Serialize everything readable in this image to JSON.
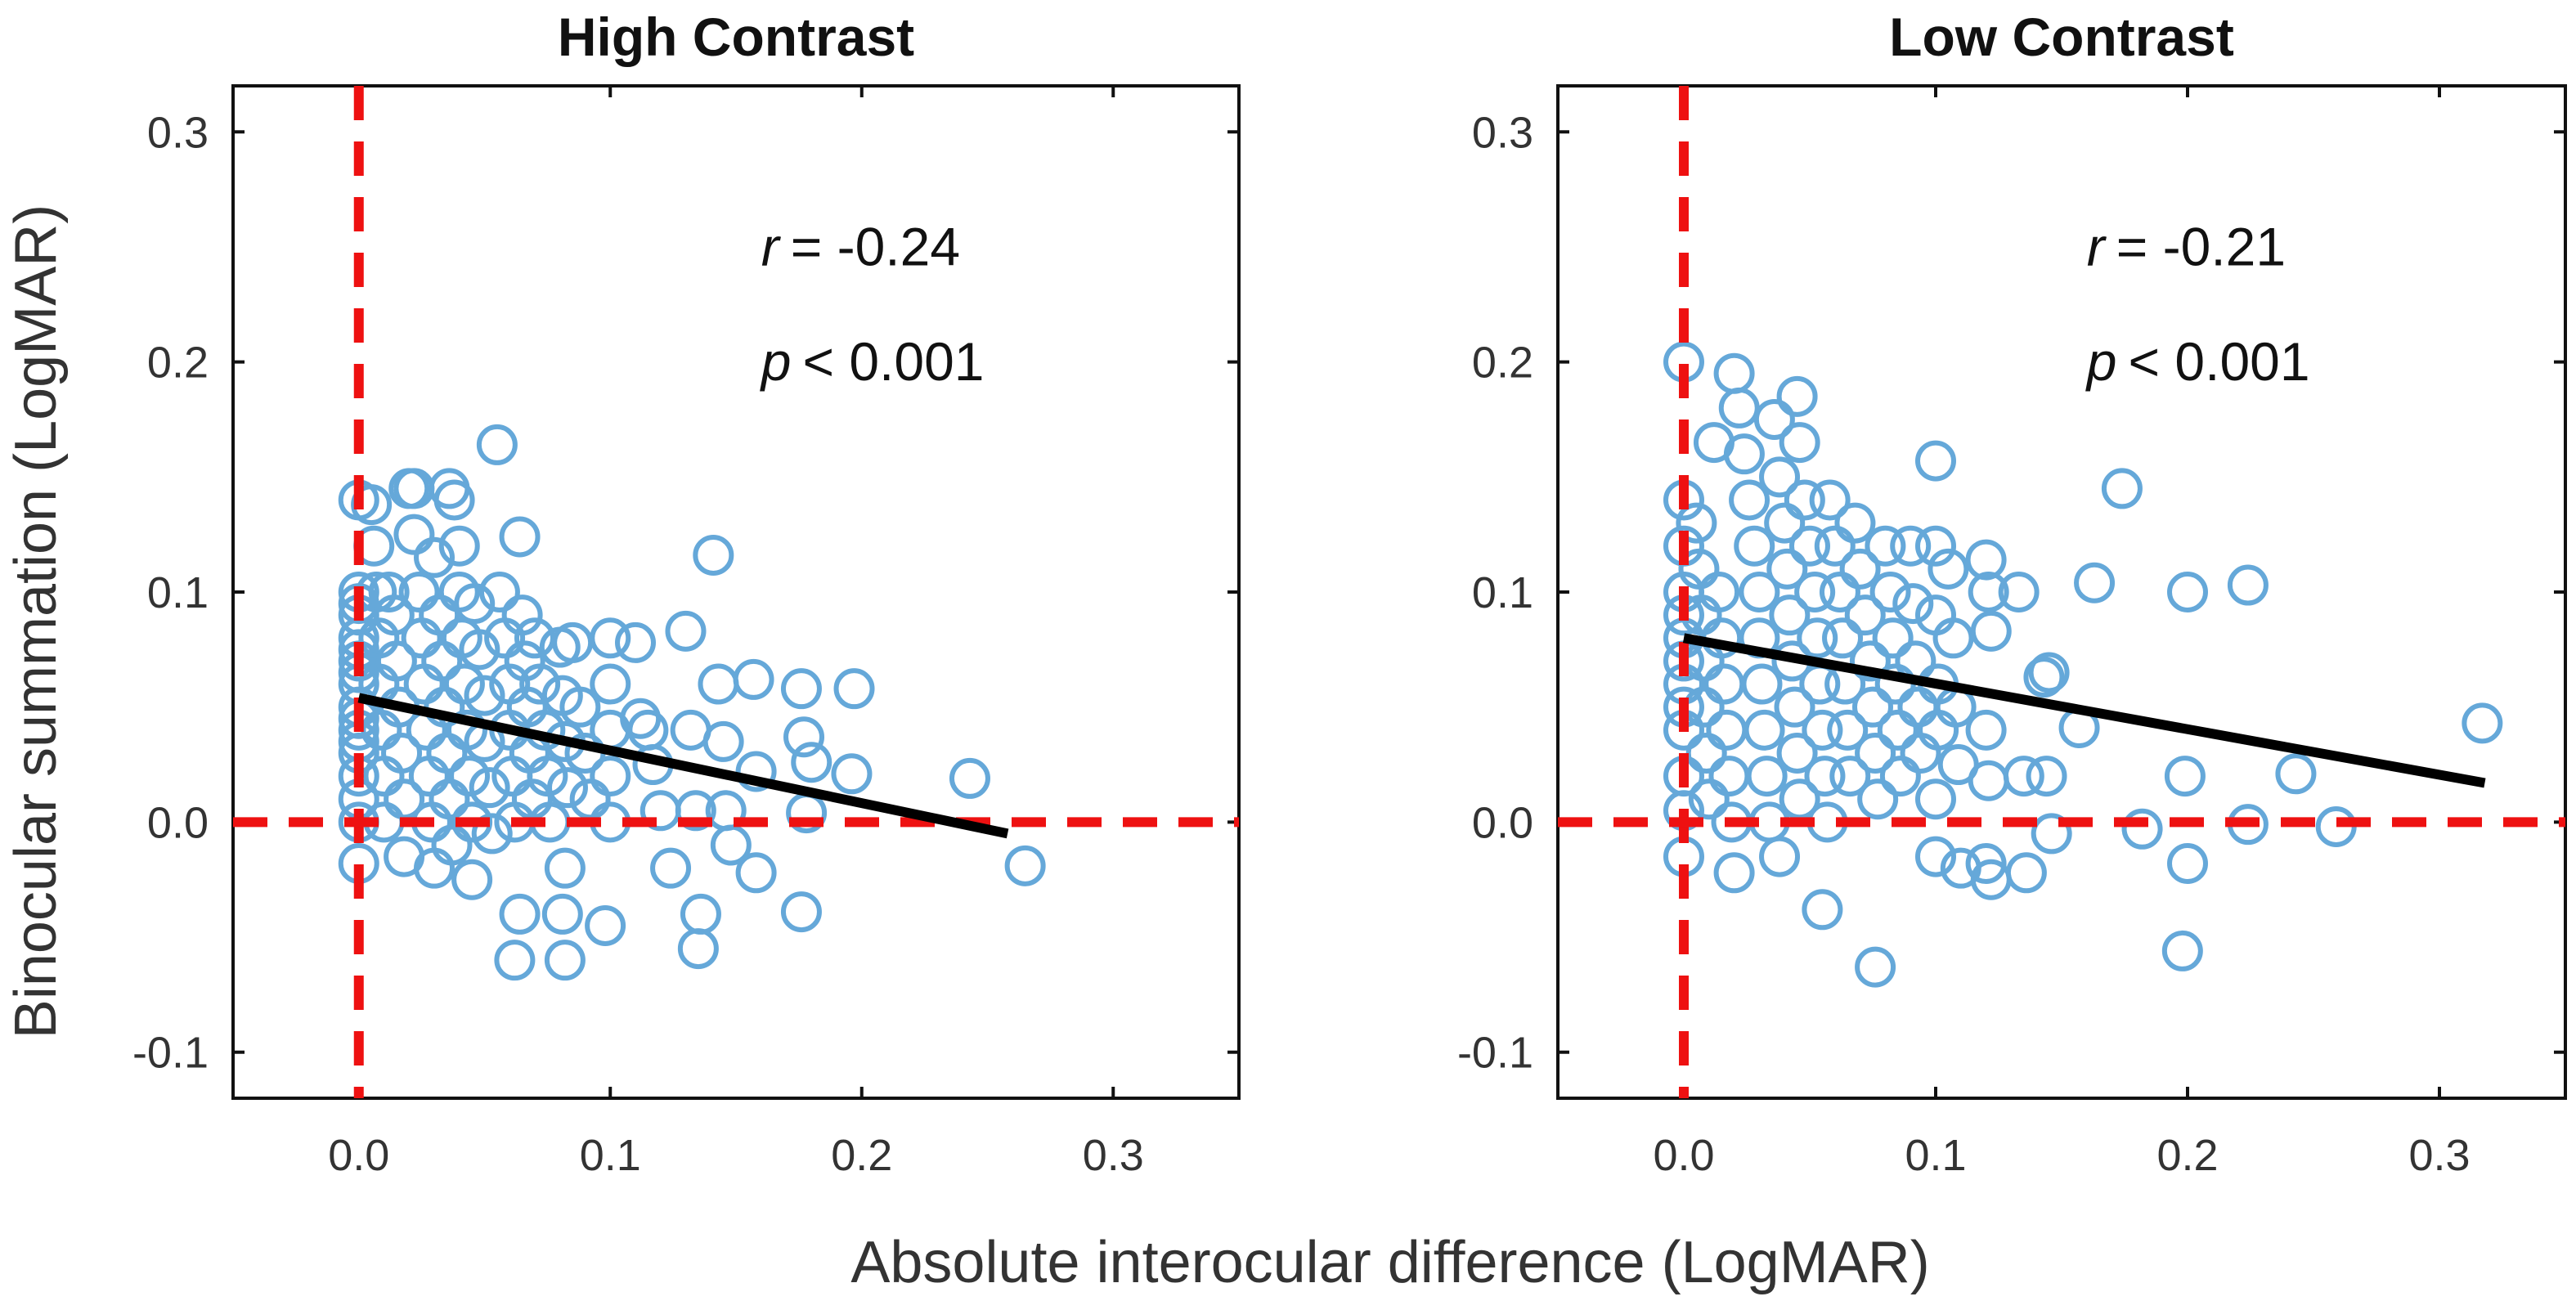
{
  "figure": {
    "xlabel": "Absolute interocular difference (LogMAR)",
    "ylabel": "Binocular summation (LogMAR)"
  },
  "colors": {
    "points": "#65a8d9",
    "reference_lines": "#ee1111",
    "fit_line": "#000000"
  },
  "chart_data": [
    {
      "type": "scatter",
      "title": "High Contrast",
      "xlim": [
        -0.05,
        0.35
      ],
      "ylim": [
        -0.12,
        0.32
      ],
      "xticks": [
        0.0,
        0.1,
        0.2,
        0.3
      ],
      "xtick_labels": [
        "0.0",
        "0.1",
        "0.2",
        "0.3"
      ],
      "yticks": [
        -0.1,
        0.0,
        0.1,
        0.2,
        0.3
      ],
      "ytick_labels": [
        "-0.1",
        "0.0",
        "0.1",
        "0.2",
        "0.3"
      ],
      "stat_r_var": "r",
      "stat_r_value": "= -0.24",
      "stat_p_var": "p",
      "stat_p_value": "< 0.001",
      "fit_line": {
        "x": [
          0.0,
          0.258
        ],
        "y": [
          0.054,
          -0.005
        ]
      },
      "reference_lines": {
        "x": 0.0,
        "y": 0.0
      },
      "points": [
        [
          0.0,
          0.14
        ],
        [
          0.0,
          0.1
        ],
        [
          0.0,
          0.09
        ],
        [
          0.0,
          0.08
        ],
        [
          0.0,
          0.07
        ],
        [
          0.0,
          0.06
        ],
        [
          0.0,
          0.05
        ],
        [
          0.0,
          0.04
        ],
        [
          0.0,
          0.03
        ],
        [
          0.0,
          0.02
        ],
        [
          0.0,
          0.01
        ],
        [
          0.0,
          0.0
        ],
        [
          0.0,
          -0.018
        ],
        [
          0.0,
          0.095
        ],
        [
          0.0,
          0.075
        ],
        [
          0.0,
          0.065
        ],
        [
          0.0,
          0.045
        ],
        [
          0.0,
          0.035
        ],
        [
          0.005,
          0.138
        ],
        [
          0.006,
          0.12
        ],
        [
          0.007,
          0.1
        ],
        [
          0.008,
          0.08
        ],
        [
          0.008,
          0.06
        ],
        [
          0.009,
          0.04
        ],
        [
          0.01,
          0.02
        ],
        [
          0.01,
          0.0
        ],
        [
          0.012,
          0.1
        ],
        [
          0.014,
          0.09
        ],
        [
          0.015,
          0.07
        ],
        [
          0.016,
          0.05
        ],
        [
          0.017,
          0.03
        ],
        [
          0.018,
          0.01
        ],
        [
          0.018,
          -0.015
        ],
        [
          0.02,
          0.145
        ],
        [
          0.022,
          0.145
        ],
        [
          0.022,
          0.125
        ],
        [
          0.024,
          0.1
        ],
        [
          0.025,
          0.08
        ],
        [
          0.026,
          0.06
        ],
        [
          0.027,
          0.04
        ],
        [
          0.028,
          0.02
        ],
        [
          0.029,
          0.0
        ],
        [
          0.03,
          -0.02
        ],
        [
          0.03,
          0.115
        ],
        [
          0.032,
          0.09
        ],
        [
          0.033,
          0.07
        ],
        [
          0.034,
          0.05
        ],
        [
          0.035,
          0.03
        ],
        [
          0.036,
          0.01
        ],
        [
          0.037,
          -0.01
        ],
        [
          0.036,
          0.145
        ],
        [
          0.038,
          0.14
        ],
        [
          0.04,
          0.12
        ],
        [
          0.04,
          0.1
        ],
        [
          0.041,
          0.08
        ],
        [
          0.042,
          0.06
        ],
        [
          0.043,
          0.04
        ],
        [
          0.044,
          0.02
        ],
        [
          0.045,
          0.0
        ],
        [
          0.045,
          -0.025
        ],
        [
          0.046,
          0.095
        ],
        [
          0.048,
          0.075
        ],
        [
          0.05,
          0.055
        ],
        [
          0.05,
          0.035
        ],
        [
          0.052,
          0.015
        ],
        [
          0.053,
          -0.005
        ],
        [
          0.055,
          0.164
        ],
        [
          0.056,
          0.1
        ],
        [
          0.058,
          0.08
        ],
        [
          0.06,
          0.06
        ],
        [
          0.06,
          0.04
        ],
        [
          0.061,
          0.02
        ],
        [
          0.062,
          0.0
        ],
        [
          0.064,
          0.124
        ],
        [
          0.065,
          0.09
        ],
        [
          0.066,
          0.07
        ],
        [
          0.067,
          0.05
        ],
        [
          0.068,
          0.03
        ],
        [
          0.069,
          0.01
        ],
        [
          0.062,
          -0.06
        ],
        [
          0.064,
          -0.04
        ],
        [
          0.07,
          0.08
        ],
        [
          0.072,
          0.06
        ],
        [
          0.074,
          0.04
        ],
        [
          0.075,
          0.02
        ],
        [
          0.076,
          0.0
        ],
        [
          0.08,
          0.076
        ],
        [
          0.081,
          0.055
        ],
        [
          0.082,
          0.035
        ],
        [
          0.083,
          0.015
        ],
        [
          0.082,
          -0.02
        ],
        [
          0.081,
          -0.04
        ],
        [
          0.082,
          -0.06
        ],
        [
          0.085,
          0.078
        ],
        [
          0.088,
          0.05
        ],
        [
          0.09,
          0.03
        ],
        [
          0.092,
          0.01
        ],
        [
          0.1,
          0.08
        ],
        [
          0.1,
          0.06
        ],
        [
          0.1,
          0.04
        ],
        [
          0.1,
          0.02
        ],
        [
          0.1,
          0.0
        ],
        [
          0.098,
          -0.045
        ],
        [
          0.11,
          0.078
        ],
        [
          0.112,
          0.045
        ],
        [
          0.115,
          0.04
        ],
        [
          0.117,
          0.025
        ],
        [
          0.12,
          0.005
        ],
        [
          0.124,
          -0.02
        ],
        [
          0.13,
          0.083
        ],
        [
          0.132,
          0.04
        ],
        [
          0.134,
          0.005
        ],
        [
          0.136,
          -0.04
        ],
        [
          0.135,
          -0.055
        ],
        [
          0.141,
          0.116
        ],
        [
          0.143,
          0.06
        ],
        [
          0.145,
          0.035
        ],
        [
          0.146,
          0.005
        ],
        [
          0.148,
          -0.01
        ],
        [
          0.157,
          0.062
        ],
        [
          0.158,
          0.022
        ],
        [
          0.158,
          -0.022
        ],
        [
          0.176,
          0.058
        ],
        [
          0.177,
          0.037
        ],
        [
          0.18,
          0.026
        ],
        [
          0.178,
          0.004
        ],
        [
          0.176,
          -0.039
        ],
        [
          0.197,
          0.058
        ],
        [
          0.196,
          0.021
        ],
        [
          0.243,
          0.019
        ],
        [
          0.265,
          -0.019
        ]
      ]
    },
    {
      "type": "scatter",
      "title": "Low Contrast",
      "xlim": [
        -0.05,
        0.35
      ],
      "ylim": [
        -0.12,
        0.32
      ],
      "xticks": [
        0.0,
        0.1,
        0.2,
        0.3
      ],
      "xtick_labels": [
        "0.0",
        "0.1",
        "0.2",
        "0.3"
      ],
      "yticks": [
        -0.1,
        0.0,
        0.1,
        0.2,
        0.3
      ],
      "ytick_labels": [
        "-0.1",
        "0.0",
        "0.1",
        "0.2",
        "0.3"
      ],
      "stat_r_var": "r",
      "stat_r_value": "= -0.21",
      "stat_p_var": "p",
      "stat_p_value": "< 0.001",
      "fit_line": {
        "x": [
          0.0,
          0.318
        ],
        "y": [
          0.08,
          0.017
        ]
      },
      "reference_lines": {
        "x": 0.0,
        "y": 0.0
      },
      "points": [
        [
          0.0,
          0.2
        ],
        [
          0.0,
          0.14
        ],
        [
          0.0,
          0.12
        ],
        [
          0.0,
          0.1
        ],
        [
          0.0,
          0.09
        ],
        [
          0.0,
          0.08
        ],
        [
          0.0,
          0.07
        ],
        [
          0.0,
          0.06
        ],
        [
          0.0,
          0.05
        ],
        [
          0.0,
          0.04
        ],
        [
          0.0,
          0.02
        ],
        [
          0.0,
          0.005
        ],
        [
          0.0,
          -0.015
        ],
        [
          0.005,
          0.13
        ],
        [
          0.006,
          0.11
        ],
        [
          0.007,
          0.09
        ],
        [
          0.008,
          0.07
        ],
        [
          0.008,
          0.05
        ],
        [
          0.009,
          0.03
        ],
        [
          0.01,
          0.01
        ],
        [
          0.012,
          0.165
        ],
        [
          0.014,
          0.1
        ],
        [
          0.015,
          0.08
        ],
        [
          0.016,
          0.06
        ],
        [
          0.017,
          0.04
        ],
        [
          0.018,
          0.02
        ],
        [
          0.019,
          0.0
        ],
        [
          0.02,
          -0.022
        ],
        [
          0.02,
          0.195
        ],
        [
          0.022,
          0.18
        ],
        [
          0.024,
          0.16
        ],
        [
          0.026,
          0.14
        ],
        [
          0.028,
          0.12
        ],
        [
          0.03,
          0.1
        ],
        [
          0.03,
          0.08
        ],
        [
          0.031,
          0.06
        ],
        [
          0.032,
          0.04
        ],
        [
          0.033,
          0.02
        ],
        [
          0.034,
          0.0
        ],
        [
          0.036,
          0.175
        ],
        [
          0.038,
          0.15
        ],
        [
          0.04,
          0.13
        ],
        [
          0.041,
          0.11
        ],
        [
          0.042,
          0.09
        ],
        [
          0.043,
          0.07
        ],
        [
          0.044,
          0.05
        ],
        [
          0.045,
          0.03
        ],
        [
          0.046,
          0.01
        ],
        [
          0.038,
          -0.015
        ],
        [
          0.045,
          0.185
        ],
        [
          0.046,
          0.165
        ],
        [
          0.048,
          0.14
        ],
        [
          0.05,
          0.12
        ],
        [
          0.052,
          0.1
        ],
        [
          0.053,
          0.08
        ],
        [
          0.054,
          0.06
        ],
        [
          0.055,
          0.04
        ],
        [
          0.056,
          0.02
        ],
        [
          0.057,
          0.0
        ],
        [
          0.058,
          0.14
        ],
        [
          0.06,
          0.12
        ],
        [
          0.062,
          0.1
        ],
        [
          0.063,
          0.08
        ],
        [
          0.064,
          0.06
        ],
        [
          0.065,
          0.04
        ],
        [
          0.066,
          0.02
        ],
        [
          0.055,
          -0.038
        ],
        [
          0.068,
          0.13
        ],
        [
          0.07,
          0.11
        ],
        [
          0.072,
          0.09
        ],
        [
          0.074,
          0.07
        ],
        [
          0.075,
          0.05
        ],
        [
          0.076,
          0.03
        ],
        [
          0.077,
          0.01
        ],
        [
          0.08,
          0.12
        ],
        [
          0.082,
          0.1
        ],
        [
          0.083,
          0.08
        ],
        [
          0.084,
          0.06
        ],
        [
          0.085,
          0.04
        ],
        [
          0.086,
          0.02
        ],
        [
          0.076,
          -0.063
        ],
        [
          0.09,
          0.12
        ],
        [
          0.091,
          0.095
        ],
        [
          0.092,
          0.07
        ],
        [
          0.093,
          0.05
        ],
        [
          0.094,
          0.03
        ],
        [
          0.1,
          0.157
        ],
        [
          0.1,
          0.12
        ],
        [
          0.1,
          0.09
        ],
        [
          0.101,
          0.06
        ],
        [
          0.101,
          0.04
        ],
        [
          0.1,
          0.01
        ],
        [
          0.1,
          -0.015
        ],
        [
          0.105,
          0.11
        ],
        [
          0.107,
          0.08
        ],
        [
          0.108,
          0.05
        ],
        [
          0.109,
          0.025
        ],
        [
          0.11,
          -0.02
        ],
        [
          0.12,
          0.114
        ],
        [
          0.121,
          0.1
        ],
        [
          0.122,
          0.083
        ],
        [
          0.12,
          0.04
        ],
        [
          0.121,
          0.018
        ],
        [
          0.12,
          -0.018
        ],
        [
          0.122,
          -0.025
        ],
        [
          0.133,
          0.1
        ],
        [
          0.135,
          0.02
        ],
        [
          0.136,
          -0.022
        ],
        [
          0.143,
          0.063
        ],
        [
          0.145,
          0.065
        ],
        [
          0.144,
          0.02
        ],
        [
          0.146,
          -0.005
        ],
        [
          0.163,
          0.104
        ],
        [
          0.157,
          0.041
        ],
        [
          0.174,
          0.145
        ],
        [
          0.182,
          -0.003
        ],
        [
          0.2,
          0.1
        ],
        [
          0.199,
          0.02
        ],
        [
          0.2,
          -0.018
        ],
        [
          0.198,
          -0.056
        ],
        [
          0.224,
          0.103
        ],
        [
          0.224,
          -0.001
        ],
        [
          0.243,
          0.021
        ],
        [
          0.259,
          -0.002
        ],
        [
          0.317,
          0.043
        ]
      ]
    }
  ]
}
